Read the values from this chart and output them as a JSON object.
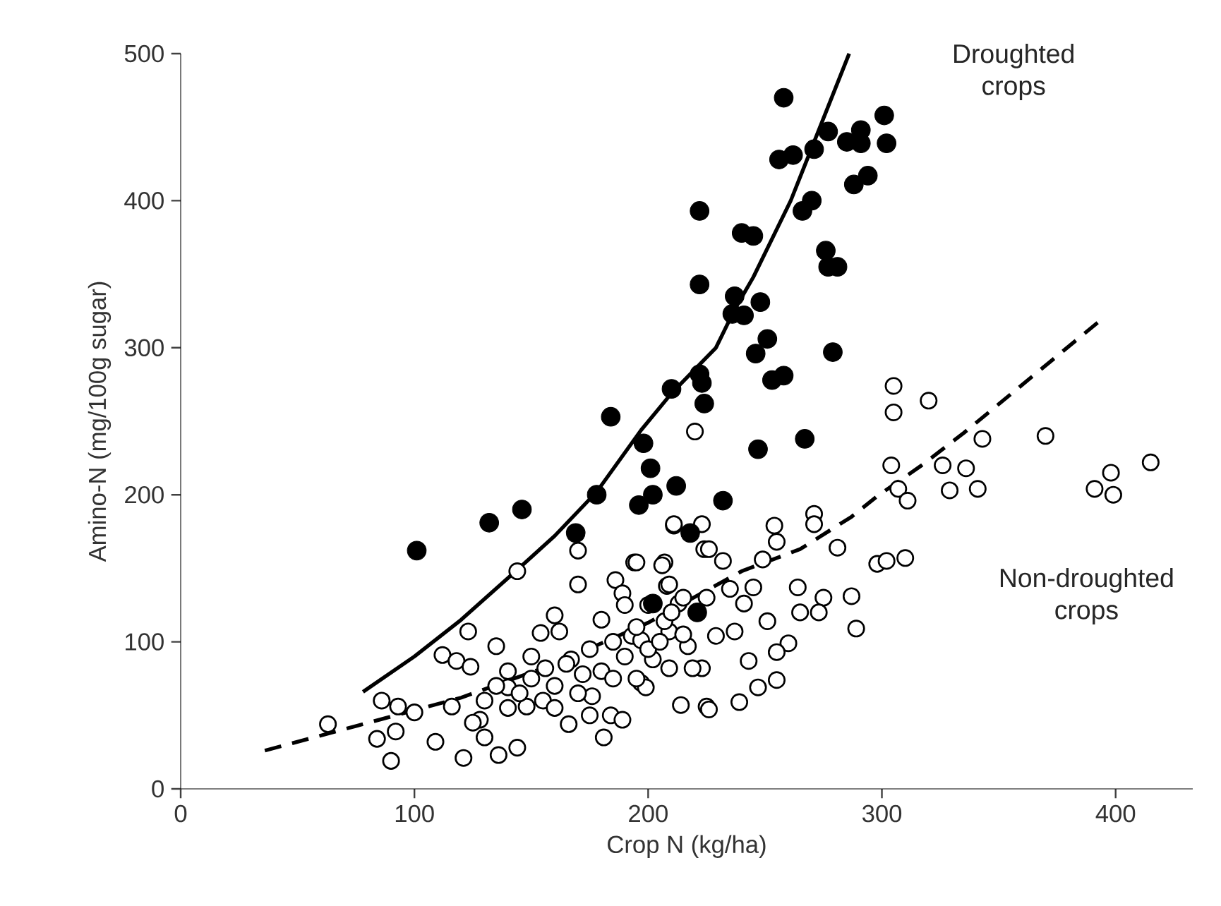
{
  "chart_data": {
    "type": "scatter",
    "xlabel": "Crop N (kg/ha)",
    "ylabel": "Amino-N (mg/100g sugar)",
    "xlim": [
      0,
      433
    ],
    "ylim": [
      0,
      500
    ],
    "xticks": [
      0,
      100,
      200,
      300,
      400
    ],
    "yticks": [
      0,
      100,
      200,
      300,
      400,
      500
    ],
    "grid": false,
    "series": [
      {
        "marker": "circle",
        "color": "#000000",
        "x": [
          101,
          132,
          146,
          178,
          169,
          198,
          202,
          196,
          212,
          218,
          202,
          221,
          247,
          267,
          232,
          184,
          201,
          210,
          222,
          223,
          224,
          222,
          222,
          237,
          248,
          236,
          241,
          251,
          246,
          253,
          258,
          279,
          240,
          245,
          266,
          270,
          276,
          281,
          277,
          258,
          256,
          262,
          271,
          277,
          285,
          291,
          291,
          301,
          302,
          294,
          288
        ],
        "values": [
          162,
          181,
          190,
          200,
          174,
          235,
          200,
          193,
          206,
          174,
          126,
          120,
          231,
          238,
          196,
          253,
          218,
          272,
          282,
          276,
          262,
          343,
          393,
          335,
          331,
          323,
          322,
          306,
          296,
          278,
          281,
          297,
          378,
          376,
          393,
          400,
          366,
          355,
          355,
          470,
          428,
          431,
          435,
          447,
          440,
          448,
          439,
          458,
          439,
          417,
          411
        ]
      },
      {
        "marker": "circle",
        "color": "#000000",
        "x": [
          63,
          90,
          84,
          86,
          93,
          92,
          100,
          109,
          112,
          118,
          124,
          123,
          135,
          144,
          121,
          136,
          144,
          116,
          128,
          140,
          148,
          156,
          160,
          154,
          162,
          170,
          170,
          166,
          167,
          172,
          176,
          181,
          186,
          184,
          189,
          194,
          207,
          208,
          211,
          214,
          197,
          193,
          202,
          209,
          217,
          223,
          225,
          224,
          220,
          305,
          305,
          320,
          304,
          343,
          370,
          326,
          336,
          329,
          341,
          307,
          311,
          391,
          398,
          399,
          415,
          298,
          302,
          310,
          287,
          289,
          271,
          271,
          281,
          254,
          211,
          223,
          226,
          232,
          195,
          225,
          235,
          245,
          249,
          255,
          264,
          275,
          265,
          273,
          251,
          260,
          255,
          255,
          247,
          239,
          226,
          243,
          229,
          237,
          241,
          189,
          199,
          209,
          219,
          197,
          207,
          213,
          206,
          209,
          130,
          135,
          140,
          145,
          150,
          155,
          160,
          165,
          170,
          175,
          180,
          185,
          190,
          195,
          200,
          205,
          210,
          215,
          150,
          160,
          140,
          125,
          130,
          175,
          185,
          195,
          215,
          200,
          190,
          180
        ],
        "values": [
          44,
          19,
          34,
          60,
          56,
          39,
          52,
          32,
          91,
          87,
          83,
          107,
          97,
          148,
          21,
          23,
          28,
          56,
          47,
          69,
          56,
          82,
          118,
          106,
          107,
          162,
          139,
          44,
          88,
          78,
          63,
          35,
          142,
          50,
          133,
          154,
          154,
          138,
          179,
          57,
          72,
          104,
          88,
          107,
          97,
          82,
          56,
          163,
          243,
          274,
          256,
          264,
          220,
          238,
          240,
          220,
          218,
          203,
          204,
          204,
          196,
          204,
          215,
          200,
          222,
          153,
          155,
          157,
          131,
          109,
          187,
          180,
          164,
          179,
          180,
          180,
          163,
          155,
          154,
          130,
          136,
          137,
          156,
          168,
          137,
          130,
          120,
          120,
          114,
          99,
          93,
          74,
          69,
          59,
          54,
          87,
          104,
          107,
          126,
          47,
          69,
          82,
          82,
          101,
          114,
          126,
          152,
          139,
          60,
          70,
          55,
          65,
          75,
          60,
          70,
          85,
          65,
          95,
          80,
          100,
          90,
          110,
          95,
          100,
          120,
          105,
          90,
          55,
          80,
          45,
          35,
          50,
          75,
          75,
          130,
          125,
          125,
          115
        ]
      },
      {
        "type": "line",
        "marker": "none",
        "line_style": "solid",
        "color": "#000000",
        "x": [
          78,
          100,
          120,
          144,
          160,
          178,
          197,
          210,
          229,
          237,
          245,
          261,
          286
        ],
        "values": [
          66,
          90,
          115,
          149,
          172,
          202,
          244,
          269,
          300,
          326,
          348,
          400,
          500
        ]
      },
      {
        "type": "line",
        "marker": "none",
        "line_style": "dashed",
        "color": "#000000",
        "x": [
          36,
          78,
          120,
          160,
          200,
          240,
          265,
          287,
          298,
          317,
          335,
          393
        ],
        "values": [
          26,
          44,
          62,
          85,
          113,
          148,
          163,
          185,
          199,
          220,
          242,
          318
        ]
      }
    ],
    "annotations": [
      "Droughted crops",
      "Non-droughted crops"
    ]
  }
}
